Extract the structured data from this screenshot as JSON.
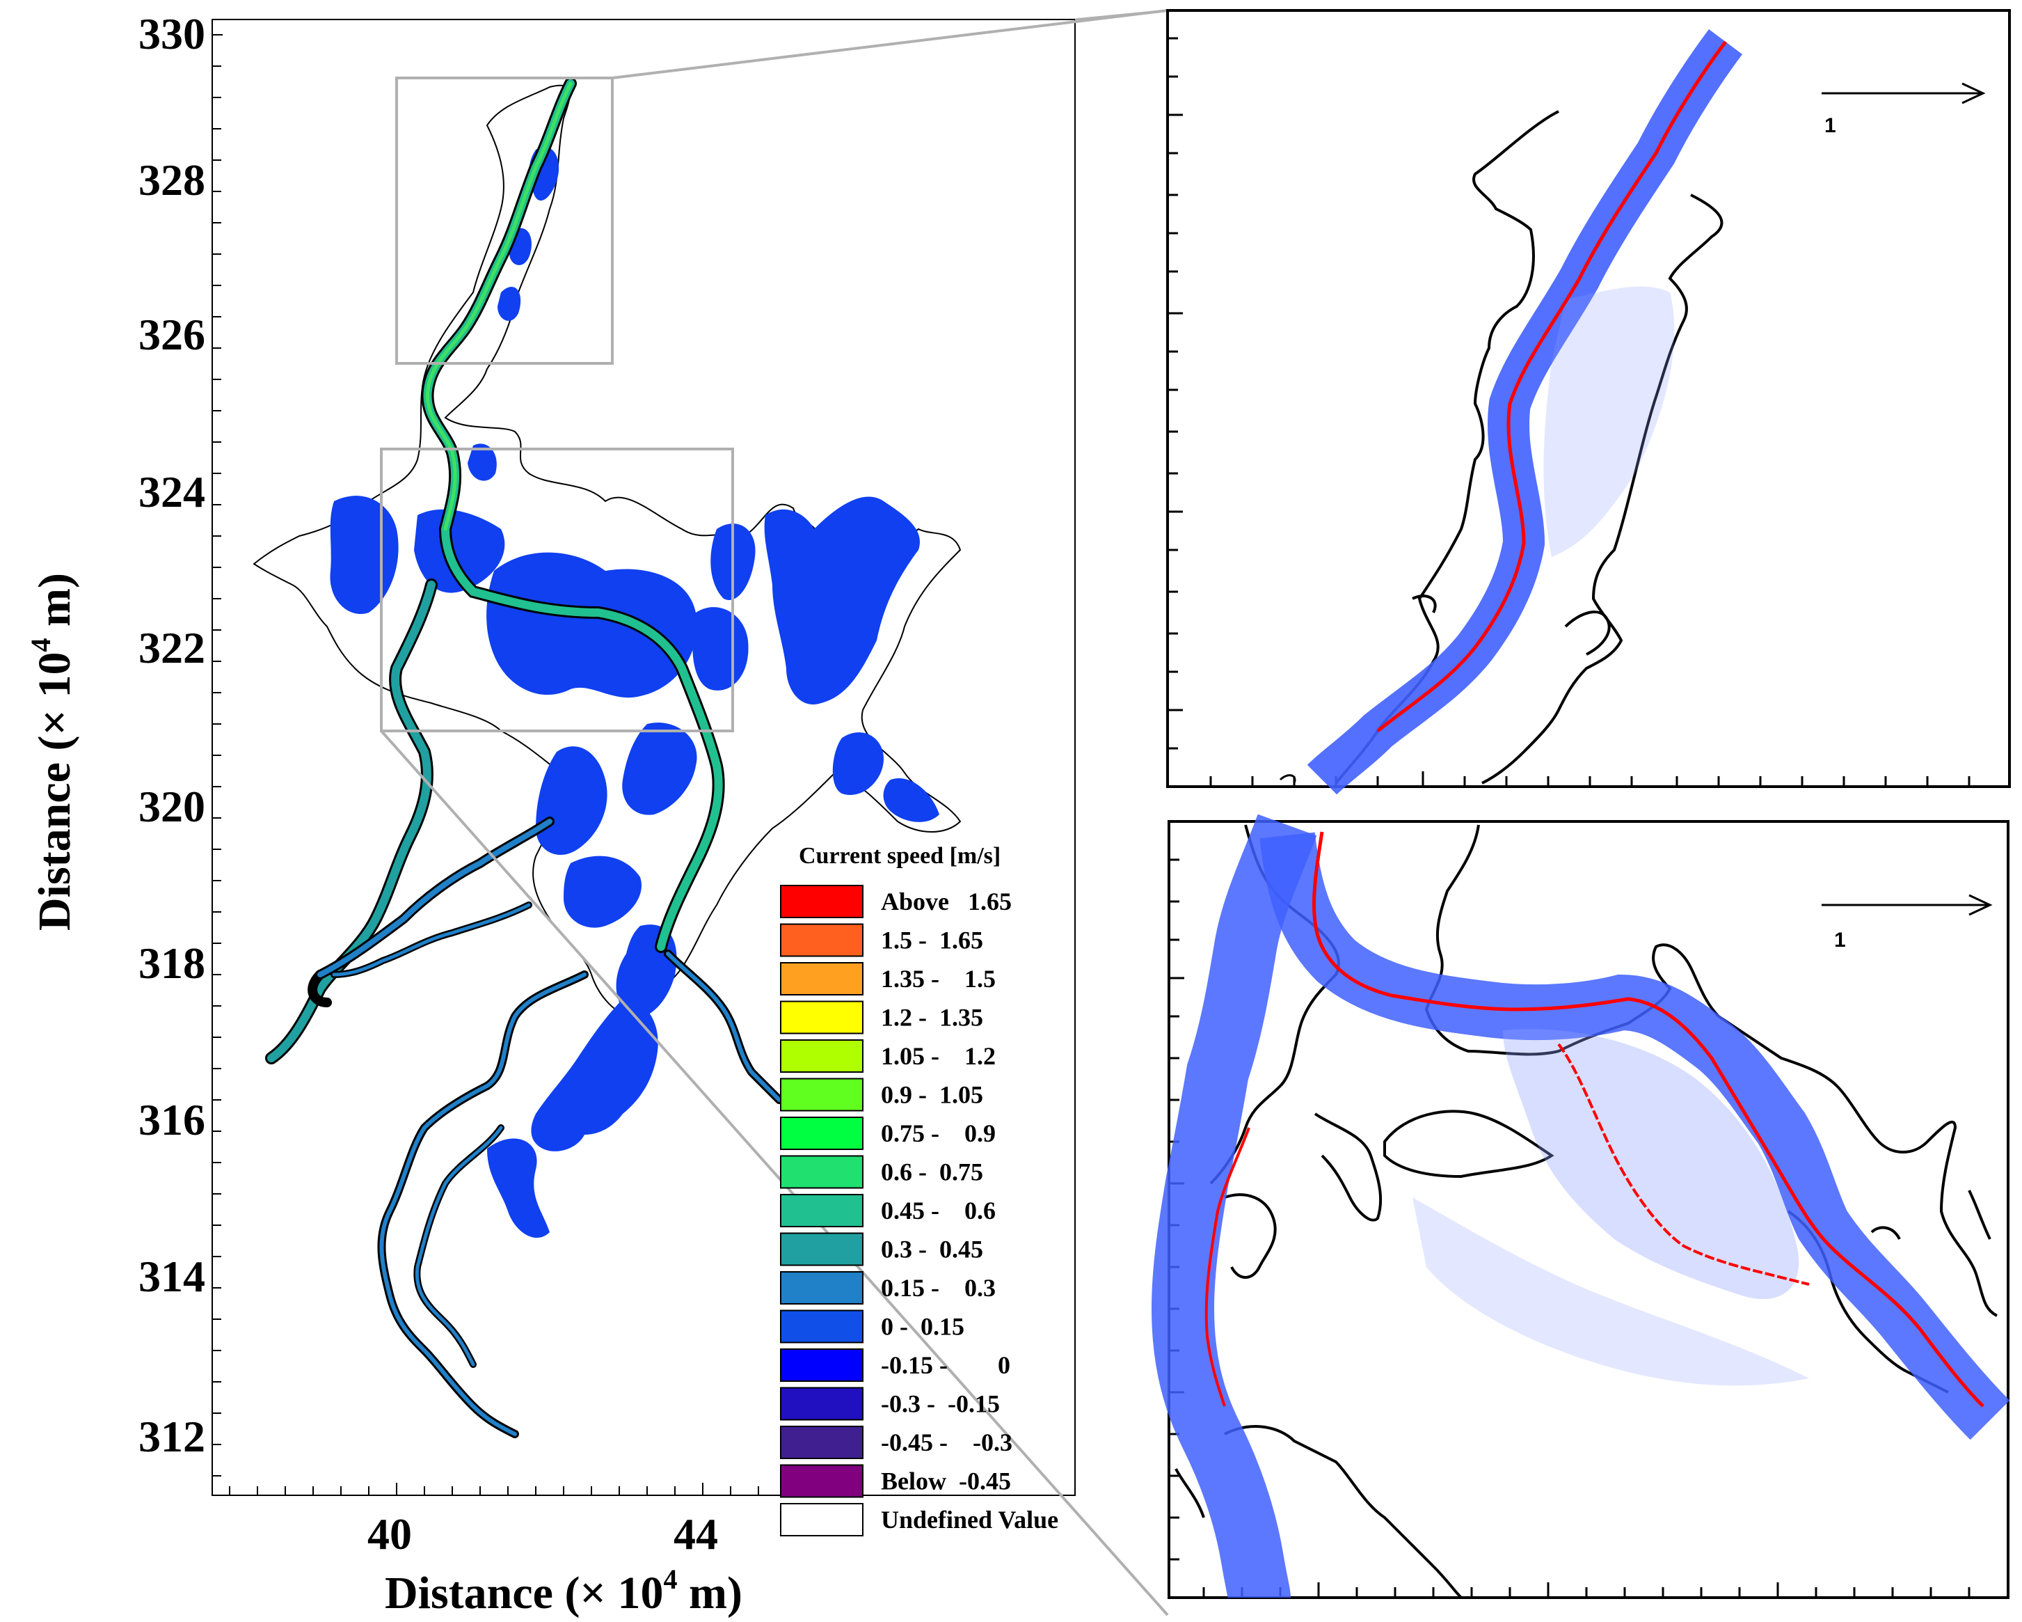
{
  "left_map": {
    "y_axis_label": "Distance (× 10",
    "y_axis_exp": "4",
    "y_axis_unit": " m)",
    "x_axis_label": "Distance (× 10",
    "x_axis_exp": "4",
    "x_axis_unit": " m)",
    "y_ticks": [
      "330",
      "328",
      "326",
      "324",
      "322",
      "320",
      "318",
      "316",
      "314",
      "312"
    ],
    "x_ticks": [
      "40",
      "44"
    ]
  },
  "legend": {
    "title": "Current speed [m/s]",
    "items": [
      {
        "label": "Above   1.65",
        "color": "#ff0000"
      },
      {
        "label": "1.5 -  1.65",
        "color": "#ff6020"
      },
      {
        "label": "1.35 -    1.5",
        "color": "#ffa020"
      },
      {
        "label": "1.2 -  1.35",
        "color": "#ffff00"
      },
      {
        "label": "1.05 -    1.2",
        "color": "#b0ff00"
      },
      {
        "label": "0.9 -  1.05",
        "color": "#60ff20"
      },
      {
        "label": "0.75 -    0.9",
        "color": "#00ff40"
      },
      {
        "label": "0.6 -  0.75",
        "color": "#20e070"
      },
      {
        "label": "0.45 -    0.6",
        "color": "#20c090"
      },
      {
        "label": "0.3 -  0.45",
        "color": "#20a0a0"
      },
      {
        "label": "0.15 -    0.3",
        "color": "#2080c8"
      },
      {
        "label": "0 -  0.15",
        "color": "#1050e8"
      },
      {
        "label": "-0.15 -        0",
        "color": "#0000ff"
      },
      {
        "label": "-0.3 -  -0.15",
        "color": "#2010c0"
      },
      {
        "label": "-0.45 -    -0.3",
        "color": "#402090"
      },
      {
        "label": "Below  -0.45",
        "color": "#800080"
      },
      {
        "label": "Undefined Value",
        "color": "#ffffff"
      }
    ]
  },
  "top_right_panel": {
    "reference_vector_label": "1"
  },
  "bottom_right_panel": {
    "reference_vector_label": "1"
  },
  "colors": {
    "water_blue": "#1040f0",
    "vector_blue": "#4060ff",
    "thalweg_red": "#ff0000",
    "inset_box": "#b0b0b0"
  }
}
